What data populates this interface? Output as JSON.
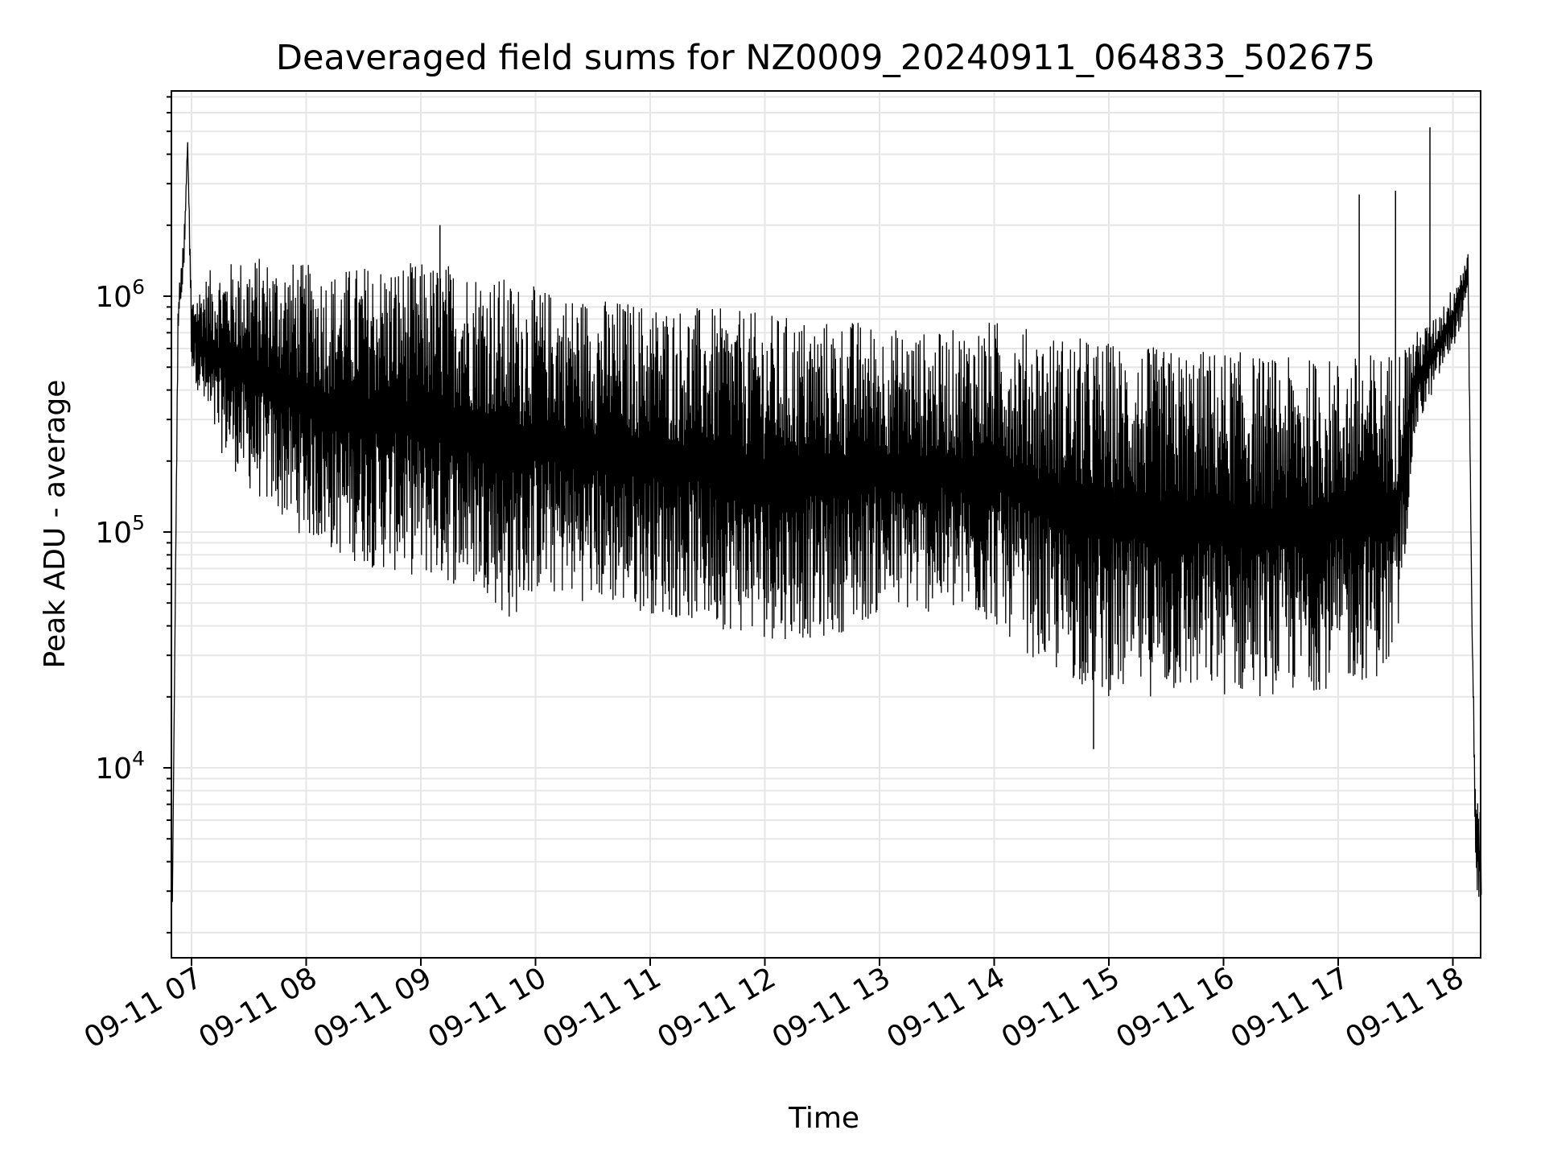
{
  "chart_data": {
    "type": "line",
    "title": "Deaveraged field sums for NZ0009_20240911_064833_502675",
    "xlabel": "Time",
    "ylabel": "Peak ADU - average",
    "yscale": "log",
    "ylim": [
      1500,
      7500000
    ],
    "xlim": [
      "2024-09-11 06:49",
      "2024-09-11 18:16"
    ],
    "grid": true,
    "grid_minor": true,
    "line_color": "#000000",
    "x_tick_labels": [
      "09-11 07",
      "09-11 08",
      "09-11 09",
      "09-11 10",
      "09-11 11",
      "09-11 12",
      "09-11 13",
      "09-11 14",
      "09-11 15",
      "09-11 16",
      "09-11 17",
      "09-11 18"
    ],
    "y_tick_labels": [
      {
        "base": "10",
        "exp": "4",
        "value": 10000
      },
      {
        "base": "10",
        "exp": "5",
        "value": 100000
      },
      {
        "base": "10",
        "exp": "6",
        "value": 1000000
      }
    ],
    "series": [
      {
        "x": [
          "2024-09-11 06:50",
          "2024-09-11 06:53",
          "2024-09-11 06:56",
          "2024-09-11 06:58",
          "2024-09-11 07:00",
          "2024-09-11 07:10",
          "2024-09-11 07:30",
          "2024-09-11 07:55",
          "2024-09-11 08:15",
          "2024-09-11 08:35",
          "2024-09-11 08:55",
          "2024-09-11 09:15",
          "2024-09-11 09:35",
          "2024-09-11 09:45",
          "2024-09-11 10:00",
          "2024-09-11 10:30",
          "2024-09-11 11:00",
          "2024-09-11 11:30",
          "2024-09-11 12:00",
          "2024-09-11 12:30",
          "2024-09-11 12:50",
          "2024-09-11 13:00",
          "2024-09-11 13:30",
          "2024-09-11 14:00",
          "2024-09-11 14:30",
          "2024-09-11 15:00",
          "2024-09-11 15:30",
          "2024-09-11 16:00",
          "2024-09-11 16:30",
          "2024-09-11 17:00",
          "2024-09-11 17:30",
          "2024-09-11 17:40",
          "2024-09-11 17:50",
          "2024-09-11 18:00",
          "2024-09-11 18:08",
          "2024-09-11 18:10",
          "2024-09-11 18:12",
          "2024-09-11 18:14",
          "2024-09-11 18:15"
        ],
        "upper": [
          2700,
          1000000,
          1800000,
          4500000,
          1000000,
          1300000,
          1500000,
          1400000,
          1300000,
          1400000,
          1400000,
          1400000,
          1300000,
          1200000,
          1100000,
          1000000,
          950000,
          900000,
          850000,
          800000,
          800000,
          750000,
          700000,
          800000,
          700000,
          650000,
          600000,
          600000,
          550000,
          550000,
          600000,
          700000,
          800000,
          1100000,
          1600000,
          40000,
          8000,
          6500,
          6500
        ],
        "lower": [
          2700,
          700000,
          1200000,
          4500000,
          500000,
          250000,
          150000,
          100000,
          80000,
          70000,
          65000,
          60000,
          55000,
          40000,
          55000,
          50000,
          45000,
          40000,
          35000,
          35000,
          40000,
          45000,
          45000,
          40000,
          25000,
          20000,
          20000,
          20000,
          20000,
          22000,
          25000,
          250000,
          400000,
          600000,
          900000,
          40000,
          3000,
          2500,
          2500
        ],
        "spikes": [
          {
            "x": "2024-09-11 06:58",
            "y": 4500000
          },
          {
            "x": "2024-09-11 09:10",
            "y": 2000000
          },
          {
            "x": "2024-09-11 17:11",
            "y": 2700000
          },
          {
            "x": "2024-09-11 17:30",
            "y": 2800000
          },
          {
            "x": "2024-09-11 17:48",
            "y": 5200000
          },
          {
            "x": "2024-09-11 14:52",
            "y": 12000
          }
        ]
      }
    ]
  }
}
